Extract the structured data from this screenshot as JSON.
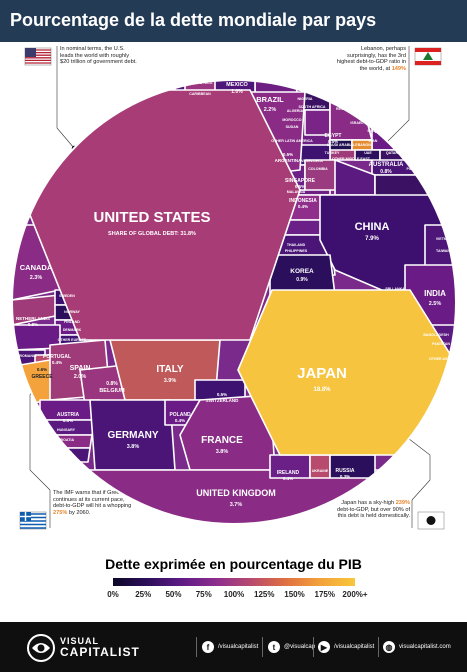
{
  "header": {
    "title": "Pourcentage de la dette mondiale par pays"
  },
  "notes": {
    "us": "In nominal terms, the U.S. leads the world with roughly $20 trillion of government debt.",
    "lebanon_text": "Lebanon, perhaps surprisingly, has the 3rd highest debt-to-GDP ratio in the world, at",
    "lebanon_value": "149%",
    "greece_text": "The IMF warns that if Greece continues at its current pace, debt-to-GDP will hit a whopping",
    "greece_value": "275%",
    "greece_tail": "by 2060.",
    "japan_text": "Japan has a sky-high",
    "japan_value": "239%",
    "japan_tail": "debt-to-GDP, but over 90% of this debt is held domestically."
  },
  "legend": {
    "title": "Dette exprimée en pourcentage du PIB",
    "ticks": [
      "0%",
      "25%",
      "50%",
      "75%",
      "100%",
      "125%",
      "150%",
      "175%",
      "200%+"
    ]
  },
  "chart_data": {
    "type": "voronoi-treemap",
    "title": "Pourcentage de la dette mondiale par pays",
    "subtitle_us": "SHARE OF GLOBAL DEBT:",
    "color_scale": {
      "min": "0%",
      "max": "200%+",
      "colors": [
        "#0c0726",
        "#5e1b86",
        "#b84a6e",
        "#f3a23c",
        "#f8c63a"
      ]
    },
    "large": [
      {
        "name": "UNITED STATES",
        "value": "31.8%"
      },
      {
        "name": "JAPAN",
        "value": "18.8%"
      },
      {
        "name": "CHINA",
        "value": "7.9%"
      },
      {
        "name": "ITALY",
        "value": "3.9%"
      },
      {
        "name": "GERMANY",
        "value": "3.8%"
      },
      {
        "name": "FRANCE",
        "value": "3.8%"
      },
      {
        "name": "UNITED KINGDOM",
        "value": "3.7%"
      },
      {
        "name": "INDIA",
        "value": "2.5%"
      },
      {
        "name": "CANADA",
        "value": "2.3%"
      },
      {
        "name": "BRAZIL",
        "value": "2.2%"
      },
      {
        "name": "SPAIN",
        "value": "2.0%"
      },
      {
        "name": "MEXICO",
        "value": "1.0%"
      },
      {
        "name": "KOREA",
        "value": "0.9%"
      },
      {
        "name": "AUSTRALIA",
        "value": "0.8%"
      },
      {
        "name": "BELGIUM",
        "value": "0.8%"
      },
      {
        "name": "NETHERLANDS",
        "value": "0.8%"
      },
      {
        "name": "GREECE",
        "value": "0.6%"
      },
      {
        "name": "SWITZERLAND",
        "value": "0.5%"
      },
      {
        "name": "SINGAPORE",
        "value": "0.5%"
      },
      {
        "name": "AUSTRIA",
        "value": "0.5%"
      },
      {
        "name": "EGYPT",
        "value": "0.5%"
      },
      {
        "name": "ARGENTINA",
        "value": "0.5%"
      },
      {
        "name": "PORTUGAL",
        "value": "0.4%"
      },
      {
        "name": "POLAND",
        "value": "0.4%"
      },
      {
        "name": "IRELAND",
        "value": "0.4%"
      },
      {
        "name": "INDONESIA",
        "value": "0.4%"
      },
      {
        "name": "RUSSIA",
        "value": "0.3%"
      }
    ],
    "small": [
      "PUERTO RICO",
      "CARIBBEAN",
      "NIGERIA",
      "SOUTH AFRICA",
      "ALGERIA",
      "SUDAN",
      "MOROCCO",
      "REST OF AFRICA",
      "ISRAEL",
      "IRAQ",
      "IRAN",
      "TURKEY",
      "COLOMBIA",
      "VENEZUELA",
      "OTHER LATIN AMERICA",
      "SAUDI ARABIA",
      "LEBANON",
      "UAE",
      "QATAR",
      "MALAYSIA",
      "THAILAND",
      "PHILIPPINES",
      "OTHER MIDDLE EAST",
      "PAKISTAN",
      "TAIWAN",
      "VIETNAM",
      "SRI LANKA",
      "BANGLADESH",
      "OTHER ASIA",
      "SWEDEN",
      "NORWAY",
      "FINLAND",
      "DENMARK",
      "OTHER EUROPE",
      "ROMANIA",
      "HUNGARY",
      "CROATIA",
      "CZECH",
      "UKRAINE",
      "P&C PAC.",
      "NZ"
    ]
  },
  "footer": {
    "brand_top": "VISUAL",
    "brand_bottom": "CAPITALIST",
    "facebook": "/visualcapitalist",
    "twitter": "@visualcap",
    "youtube": "/visualcapitalist",
    "web": "visualcapitalist.com"
  }
}
